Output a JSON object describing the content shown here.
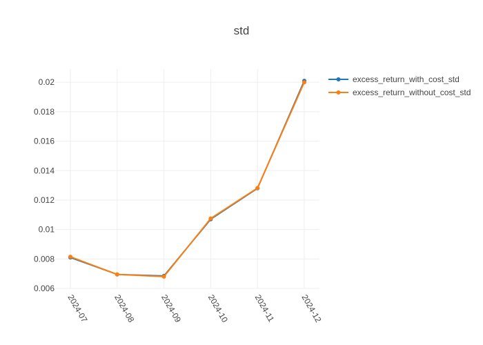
{
  "chart_data": {
    "type": "line",
    "title": "std",
    "xlabel": "",
    "ylabel": "",
    "categories": [
      "2024-07",
      "2024-08",
      "2024-09",
      "2024-10",
      "2024-11",
      "2024-12"
    ],
    "ylim": [
      0.006,
      0.0209
    ],
    "yticks": [
      0.006,
      0.008,
      0.01,
      0.012,
      0.014,
      0.016,
      0.018,
      0.02
    ],
    "ytick_labels": [
      "0.006",
      "0.008",
      "0.01",
      "0.012",
      "0.014",
      "0.016",
      "0.018",
      "0.02"
    ],
    "grid": true,
    "legend_position": "top-right",
    "series": [
      {
        "name": "excess_return_with_cost_std",
        "color": "#1f77b4",
        "values": [
          0.0081,
          0.00695,
          0.00685,
          0.0107,
          0.0128,
          0.0201
        ]
      },
      {
        "name": "excess_return_without_cost_std",
        "color": "#ff7f0e",
        "values": [
          0.00815,
          0.00695,
          0.0068,
          0.01075,
          0.01282,
          0.02
        ]
      }
    ]
  }
}
